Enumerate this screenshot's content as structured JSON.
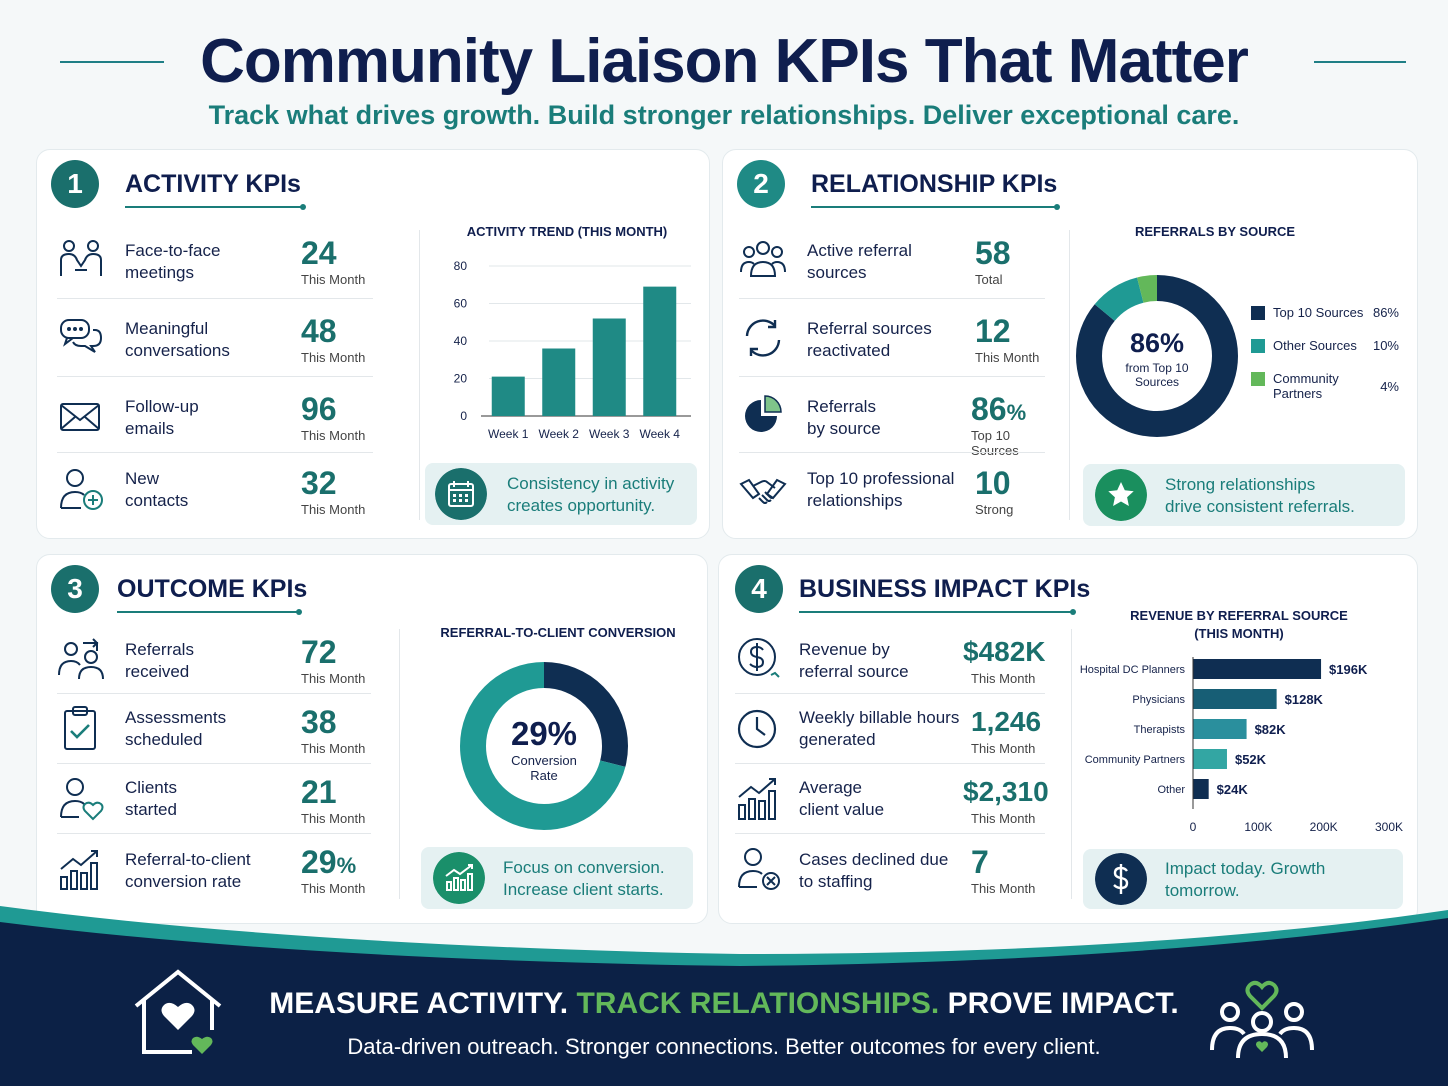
{
  "header": {
    "title": "Community Liaison KPIs That Matter",
    "subtitle": "Track what drives growth. Build stronger relationships. Deliver exceptional care."
  },
  "activity": {
    "num": "1",
    "title": "ACTIVITY KPIs",
    "rows": [
      {
        "label1": "Face-to-face",
        "label2": "meetings",
        "value": "24",
        "unit": "This Month",
        "icon": "meeting-icon"
      },
      {
        "label1": "Meaningful",
        "label2": "conversations",
        "value": "48",
        "unit": "This Month",
        "icon": "chat-icon"
      },
      {
        "label1": "Follow-up",
        "label2": "emails",
        "value": "96",
        "unit": "This Month",
        "icon": "email-icon"
      },
      {
        "label1": "New",
        "label2": "contacts",
        "value": "32",
        "unit": "This Month",
        "icon": "add-contact-icon"
      }
    ],
    "tip1": "Consistency in activity",
    "tip2": "creates opportunity."
  },
  "relationship": {
    "num": "2",
    "title": "RELATIONSHIP KPIs",
    "rows": [
      {
        "label1": "Active referral",
        "label2": "sources",
        "value": "58",
        "unit": "Total",
        "icon": "group-icon"
      },
      {
        "label1": "Referral sources",
        "label2": "reactivated",
        "value": "12",
        "unit": "This Month",
        "icon": "refresh-icon"
      },
      {
        "label1": "Referrals",
        "label2": "by source",
        "value": "86",
        "value_suffix": "%",
        "unit": "Top 10 Sources",
        "icon": "pie-icon"
      },
      {
        "label1": "Top 10 professional",
        "label2": "relationships",
        "value": "10",
        "unit": "Strong",
        "icon": "handshake-icon"
      }
    ],
    "tip1": "Strong relationships",
    "tip2": "drive consistent referrals."
  },
  "outcome": {
    "num": "3",
    "title": "OUTCOME KPIs",
    "rows": [
      {
        "label1": "Referrals",
        "label2": "received",
        "value": "72",
        "unit": "This Month",
        "icon": "referral-icon"
      },
      {
        "label1": "Assessments",
        "label2": "scheduled",
        "value": "38",
        "unit": "This Month",
        "icon": "clipboard-icon"
      },
      {
        "label1": "Clients",
        "label2": "started",
        "value": "21",
        "unit": "This Month",
        "icon": "client-heart-icon"
      },
      {
        "label1": "Referral-to-client",
        "label2": "conversion rate",
        "value": "29",
        "value_suffix": "%",
        "unit": "This Month",
        "icon": "growth-icon"
      }
    ],
    "tip1": "Focus on conversion.",
    "tip2": "Increase client starts."
  },
  "impact": {
    "num": "4",
    "title": "BUSINESS IMPACT KPIs",
    "rows": [
      {
        "label1": "Revenue by",
        "label2": "referral source",
        "value": "$482K",
        "unit": "This Month",
        "icon": "dollar-icon"
      },
      {
        "label1": "Weekly billable hours",
        "label2": "generated",
        "value": "1,246",
        "unit": "This Month",
        "icon": "clock-icon"
      },
      {
        "label1": "Average",
        "label2": "client value",
        "value": "$2,310",
        "unit": "This Month",
        "icon": "bar-growth-icon"
      },
      {
        "label1": "Cases declined due",
        "label2": "to staffing",
        "value": "7",
        "unit": "This Month",
        "icon": "declined-user-icon"
      }
    ],
    "tip1": "Impact today. Growth",
    "tip2": "tomorrow."
  },
  "chart_data": [
    {
      "type": "bar",
      "title": "ACTIVITY TREND (THIS MONTH)",
      "categories": [
        "Week 1",
        "Week 2",
        "Week 3",
        "Week 4"
      ],
      "values": [
        21,
        36,
        52,
        69
      ],
      "ylim": [
        0,
        80
      ],
      "yticks": [
        "0",
        "20",
        "40",
        "60",
        "80"
      ],
      "grid": true,
      "color": "#1f8a85"
    },
    {
      "type": "pie",
      "title": "REFERRALS BY SOURCE",
      "center_value": "86%",
      "center_label1": "from Top 10",
      "center_label2": "Sources",
      "slices": [
        {
          "name": "Top 10 Sources",
          "value": 86,
          "label": "86%",
          "color": "#0f2e52"
        },
        {
          "name": "Other Sources",
          "value": 10,
          "label": "10%",
          "color": "#1f9a94"
        },
        {
          "name": "Community",
          "name2": "Partners",
          "value": 4,
          "label": "4%",
          "color": "#63b85a"
        }
      ],
      "legend": "right"
    },
    {
      "type": "pie",
      "title": "REFERRAL-TO-CLIENT CONVERSION",
      "center_value": "29%",
      "center_label1": "Conversion",
      "center_label2": "Rate",
      "slices": [
        {
          "value": 29,
          "color": "#0f2e52"
        },
        {
          "value": 71,
          "color": "#1f9a94"
        }
      ]
    },
    {
      "type": "bar",
      "orientation": "horizontal",
      "title1": "REVENUE BY REFERRAL SOURCE",
      "title2": "(THIS MONTH)",
      "categories": [
        "Hospital DC Planners",
        "Physicians",
        "Therapists",
        "Community Partners",
        "Other"
      ],
      "values": [
        196,
        128,
        82,
        52,
        24
      ],
      "value_labels": [
        "$196K",
        "$128K",
        "$82K",
        "$52K",
        "$24K"
      ],
      "xlim": [
        0,
        300
      ],
      "xticks": [
        "0",
        "100K",
        "200K",
        "300K"
      ],
      "colors": [
        "#0f2e52",
        "#175e75",
        "#2a8f9d",
        "#33a6a3",
        "#0f2e52"
      ]
    }
  ],
  "footer": {
    "part1": "MEASURE ACTIVITY.",
    "part2": "TRACK RELATIONSHIPS.",
    "part3": "PROVE IMPACT.",
    "tagline": "Data-driven outreach. Stronger connections. Better outcomes for every client."
  }
}
